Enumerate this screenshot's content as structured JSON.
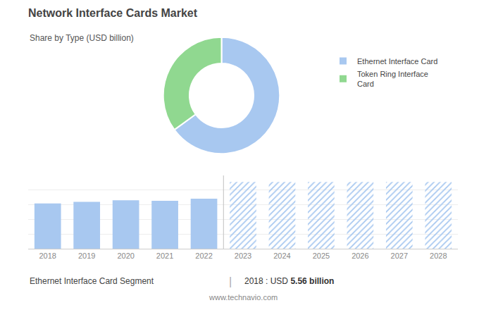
{
  "chart_data": [
    {
      "type": "pie",
      "title": "Network Interface Cards Market",
      "subtitle": "Share by Type (USD billion)",
      "categories": [
        "Ethernet Interface Card",
        "Token Ring Interface\nCard"
      ],
      "values": [
        65,
        35
      ],
      "colors": [
        "#a8c8f0",
        "#90d890"
      ],
      "legend": "right"
    },
    {
      "type": "bar",
      "categories": [
        "2018",
        "2019",
        "2020",
        "2021",
        "2022",
        "2023",
        "2024",
        "2025",
        "2026",
        "2027",
        "2028"
      ],
      "series": [
        {
          "color": "#a8c8f0",
          "values": [
            5.56,
            5.75,
            5.95,
            5.88,
            6.15,
            null,
            null,
            null,
            null,
            null,
            null
          ]
        },
        {
          "color": "#d8eaf8",
          "values": [
            null,
            null,
            null,
            null,
            null,
            8.2,
            8.2,
            8.2,
            8.2,
            8.2,
            8.2
          ]
        }
      ],
      "ylim": [
        0,
        9
      ],
      "yticks": [
        0,
        1.8,
        3.6,
        5.4,
        7.2,
        9
      ],
      "grid": true,
      "tick_labels": "x",
      "annotations": [
        "Ethernet Interface Card Segment",
        "|",
        "2018 : USD ",
        "5.56 billion",
        "www.technavio.com"
      ]
    }
  ]
}
